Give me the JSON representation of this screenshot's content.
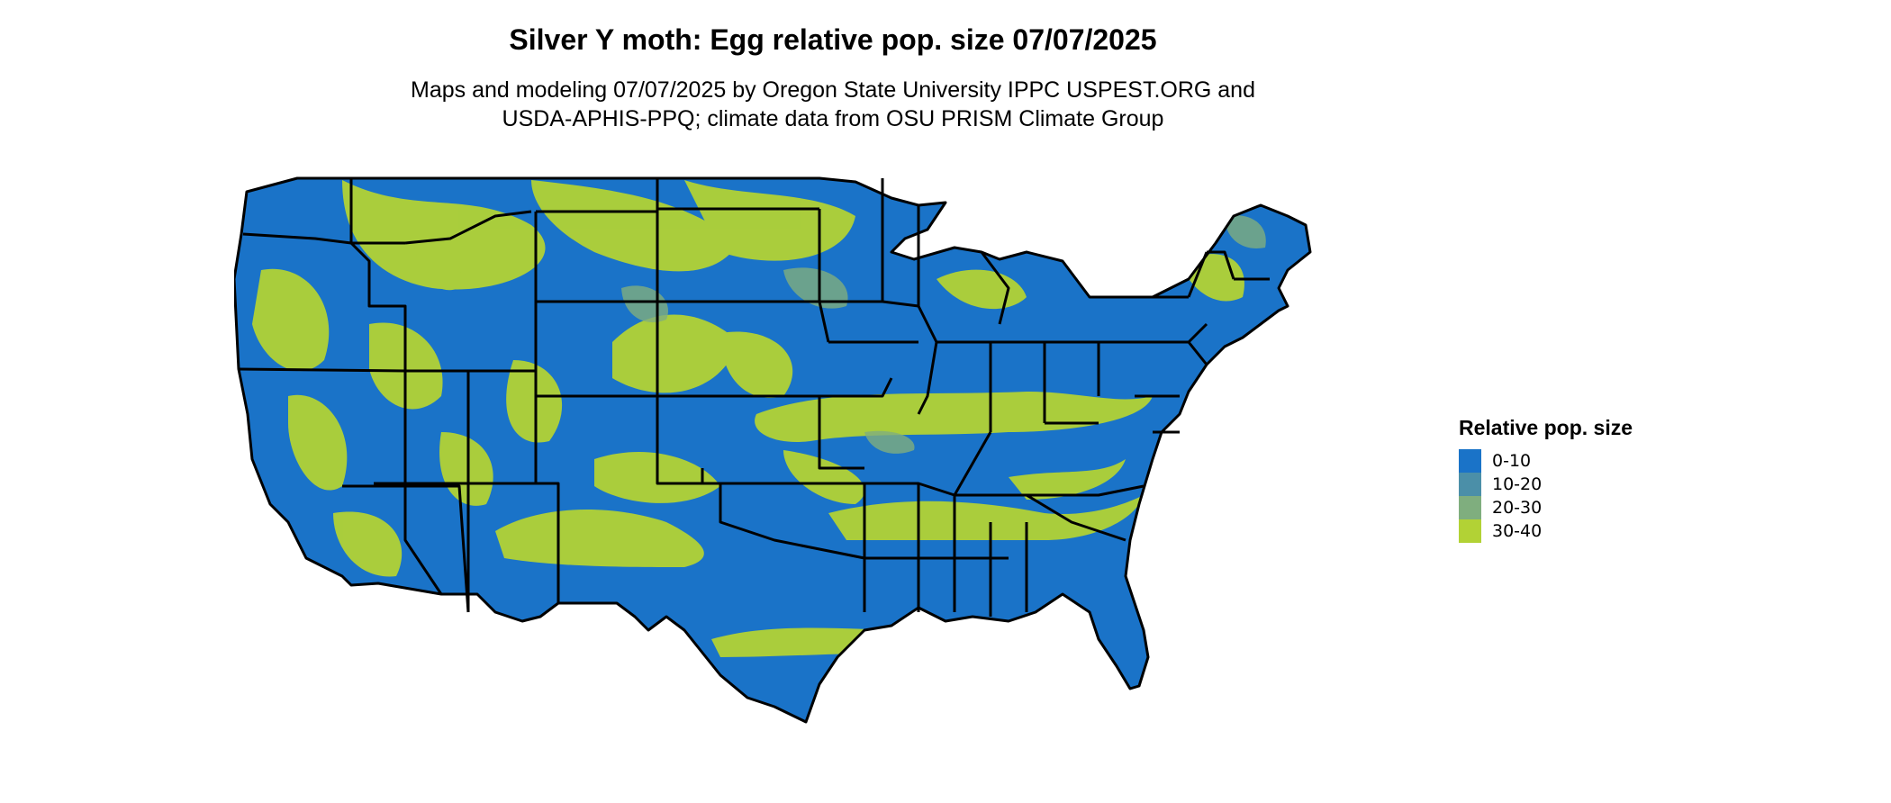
{
  "title": "Silver Y moth: Egg relative pop. size 07/07/2025",
  "subtitle": {
    "line1": "Maps and modeling 07/07/2025 by Oregon State University IPPC USPEST.ORG and",
    "line2": "USDA-APHIS-PPQ; climate data from OSU PRISM Climate Group"
  },
  "legend": {
    "title": "Relative pop. size",
    "items": [
      {
        "label": "0-10",
        "color": "#1a73c8"
      },
      {
        "label": "10-20",
        "color": "#4b8fa8"
      },
      {
        "label": "20-30",
        "color": "#7fae7e"
      },
      {
        "label": "30-40",
        "color": "#b2d235"
      }
    ]
  },
  "map": {
    "region": "contiguous-united-states",
    "state_border_color": "#000000",
    "base_fill": "#1a73c8",
    "highlight_fill": "#b2d235"
  }
}
